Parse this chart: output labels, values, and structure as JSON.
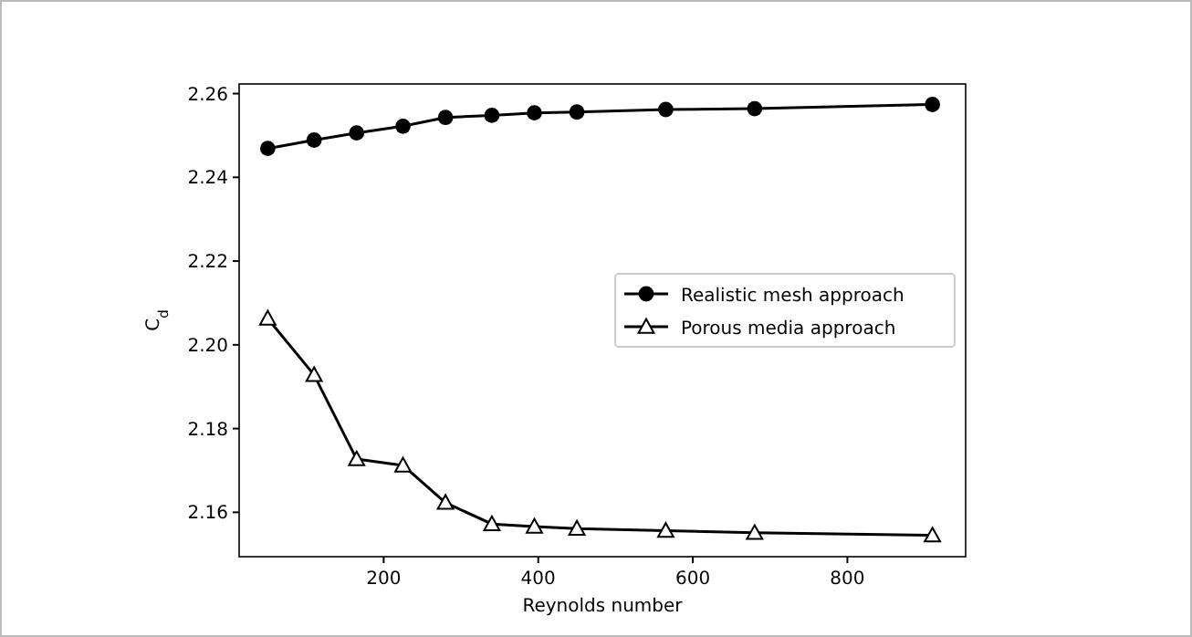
{
  "chart_data": {
    "type": "line",
    "xlabel": "Reynolds number",
    "ylabel": "C$_{d}$",
    "xlim": [
      13,
      953
    ],
    "ylim": [
      2.1494,
      2.2623
    ],
    "xticks": [
      200,
      400,
      600,
      800
    ],
    "yticks": [
      {
        "value": 2.16,
        "label": "2.16"
      },
      {
        "value": 2.18,
        "label": "2.18"
      },
      {
        "value": 2.2,
        "label": "2.20"
      },
      {
        "value": 2.22,
        "label": "2.22"
      },
      {
        "value": 2.24,
        "label": "2.24"
      },
      {
        "value": 2.26,
        "label": "2.26"
      }
    ],
    "grid": false,
    "legend": "right",
    "series": [
      {
        "name": "Realistic mesh approach",
        "color": "#000000",
        "marker": "circle",
        "x": [
          50,
          110,
          165,
          225,
          280,
          340,
          395,
          450,
          565,
          680,
          910
        ],
        "values": [
          2.2469,
          2.2489,
          2.2506,
          2.2522,
          2.2543,
          2.2548,
          2.2554,
          2.2556,
          2.2562,
          2.2564,
          2.2574
        ]
      },
      {
        "name": "Porous media approach",
        "color": "#000000",
        "marker": "triangle",
        "x": [
          50,
          110,
          165,
          225,
          280,
          340,
          395,
          450,
          565,
          680,
          910
        ],
        "values": [
          2.2063,
          2.1928,
          2.1727,
          2.1712,
          2.1623,
          2.1572,
          2.1566,
          2.1561,
          2.1556,
          2.1551,
          2.1545
        ]
      }
    ]
  }
}
